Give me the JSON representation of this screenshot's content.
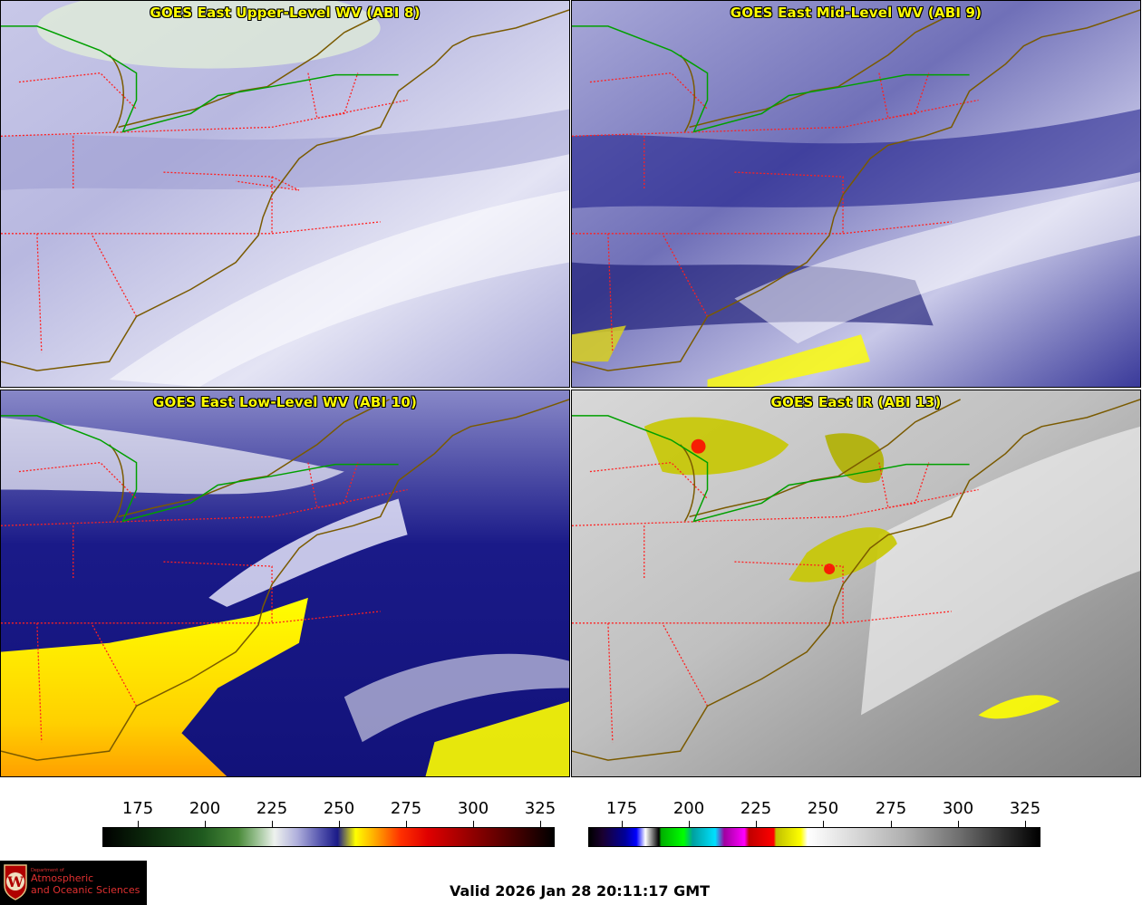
{
  "panels": [
    {
      "id": "upper",
      "title": "GOES East Upper-Level WV (ABI 8)",
      "product": "upper-level water vapor",
      "channel": "ABI 8",
      "scheme": "wv"
    },
    {
      "id": "mid",
      "title": "GOES East Mid-Level WV (ABI 9)",
      "product": "mid-level water vapor",
      "channel": "ABI 9",
      "scheme": "wv"
    },
    {
      "id": "low",
      "title": "GOES East Low-Level WV (ABI 10)",
      "product": "low-level water vapor",
      "channel": "ABI 10",
      "scheme": "wv"
    },
    {
      "id": "ir",
      "title": "GOES East IR (ABI 13)",
      "product": "infrared",
      "channel": "ABI 13",
      "scheme": "ir"
    }
  ],
  "colorbars": {
    "wv": {
      "ticks": [
        "175",
        "200",
        "225",
        "250",
        "275",
        "300",
        "325"
      ],
      "range": [
        163,
        331
      ]
    },
    "ir": {
      "ticks": [
        "175",
        "200",
        "225",
        "250",
        "275",
        "300",
        "325"
      ],
      "range": [
        163,
        331
      ]
    }
  },
  "logo": {
    "department": "Department of",
    "line1": "Atmospheric",
    "line2": "and Oceanic Sciences",
    "crest_letter": "W"
  },
  "valid_time": "Valid 2026 Jan 28 20:11:17 GMT",
  "colors": {
    "title_text": "#ffff00",
    "coastline": "#7a5a00",
    "state_borders": "#ff2020",
    "canada_border": "#00a000",
    "wv_dry": "#ffff00",
    "wv_moist": "#ffffff",
    "wv_mid": "#1a1a88",
    "ir_cold": "#ffff00",
    "logo_bg": "#000000",
    "logo_text": "#e03030"
  },
  "map_features": [
    "coastlines",
    "state-borders",
    "canada-us-border",
    "great-lakes"
  ]
}
